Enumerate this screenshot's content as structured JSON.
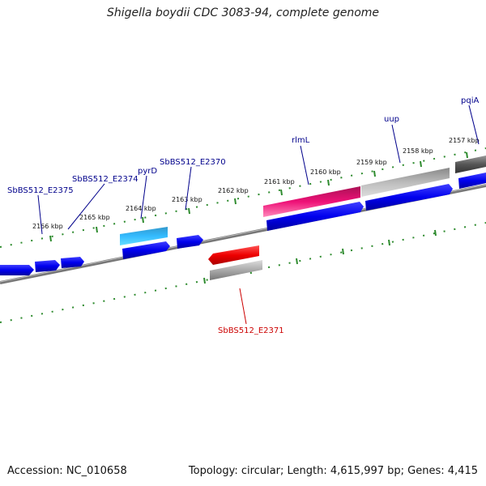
{
  "title": "Shigella boydii CDC 3083-94, complete genome",
  "footer": {
    "accession": "Accession: NC_010658",
    "topology": "Topology: circular; Length: 4,615,997 bp; Genes: 4,415"
  },
  "colors": {
    "backbone": "#777777",
    "tick": "#2e8b2e",
    "gene_label": "#00008b",
    "highlight_label": "#cc0000",
    "blue_feature": "#0000ee",
    "cyan_feature": "#22aaee",
    "pink_feature": "#ee1177",
    "red_feature": "#ee0000",
    "gray_feature": "#aaaaaa",
    "dark_feature": "#555555"
  },
  "kbp_labels": [
    "2166 kbp",
    "2165 kbp",
    "2164 kbp",
    "2163 kbp",
    "2162 kbp",
    "2161 kbp",
    "2160 kbp",
    "2159 kbp",
    "2158 kbp",
    "2157 kbp"
  ],
  "gene_labels": [
    {
      "text": "SbBS512_E2375",
      "color": "dark"
    },
    {
      "text": "SbBS512_E2374",
      "color": "dark"
    },
    {
      "text": "pyrD",
      "color": "dark"
    },
    {
      "text": "SbBS512_E2370",
      "color": "dark"
    },
    {
      "text": "rlmL",
      "color": "dark"
    },
    {
      "text": "uup",
      "color": "dark"
    },
    {
      "text": "pqiA",
      "color": "dark"
    },
    {
      "text": "SbBS512_E2371",
      "color": "red"
    }
  ]
}
